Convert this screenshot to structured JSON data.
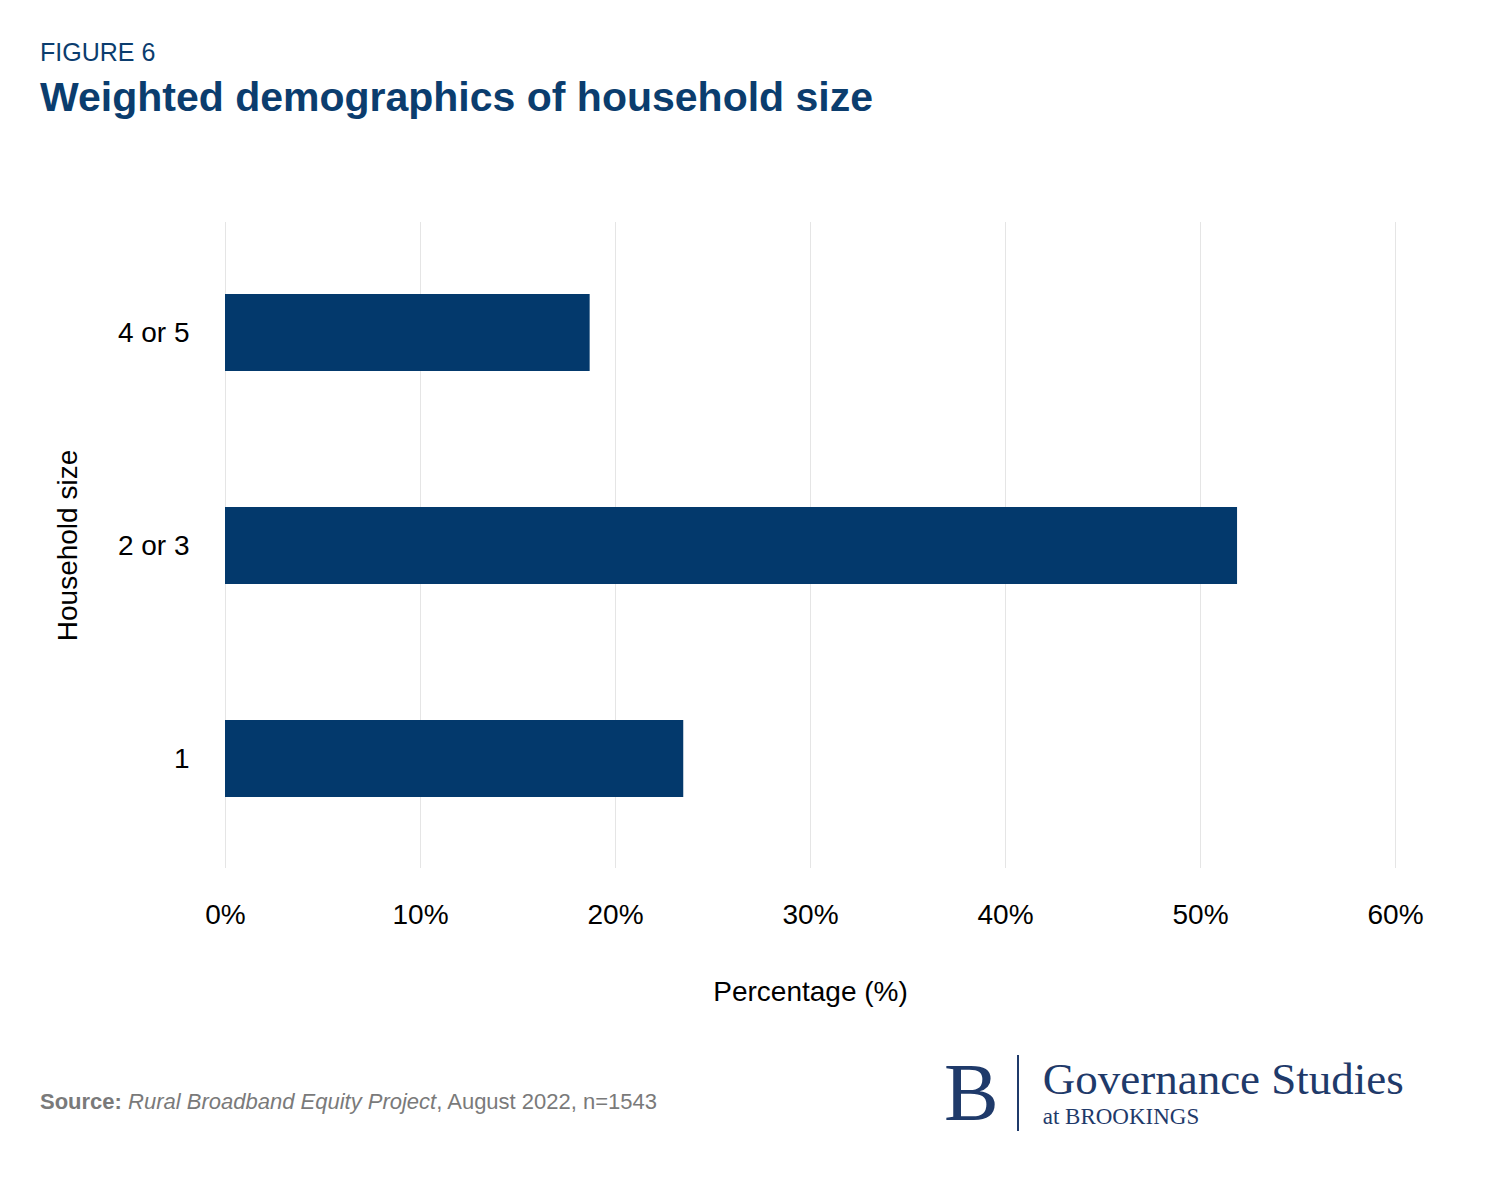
{
  "chart_data": {
    "type": "bar",
    "orientation": "horizontal",
    "figure_number": "FIGURE 6",
    "title": "Weighted demographics of household size",
    "categories": [
      "4 or 5",
      "2 or 3",
      "1"
    ],
    "values": [
      18.7,
      51.9,
      23.5
    ],
    "color": "#03396c",
    "xlim": [
      0,
      60
    ],
    "xticks": [
      {
        "value": 0,
        "label": "0%"
      },
      {
        "value": 10,
        "label": "10%"
      },
      {
        "value": 20,
        "label": "20%"
      },
      {
        "value": 30,
        "label": "30%"
      },
      {
        "value": 40,
        "label": "40%"
      },
      {
        "value": 50,
        "label": "50%"
      },
      {
        "value": 60,
        "label": "60%"
      }
    ],
    "grid": true,
    "x_label": "Percentage (%)",
    "y_label": "Household size",
    "source": {
      "label": "Source:",
      "title": "Rural Broadband Equity Project",
      "note": ", August 2022, n=1543"
    },
    "branding": {
      "mark": "B",
      "name": "Governance Studies",
      "org": "at BROOKINGS"
    }
  }
}
